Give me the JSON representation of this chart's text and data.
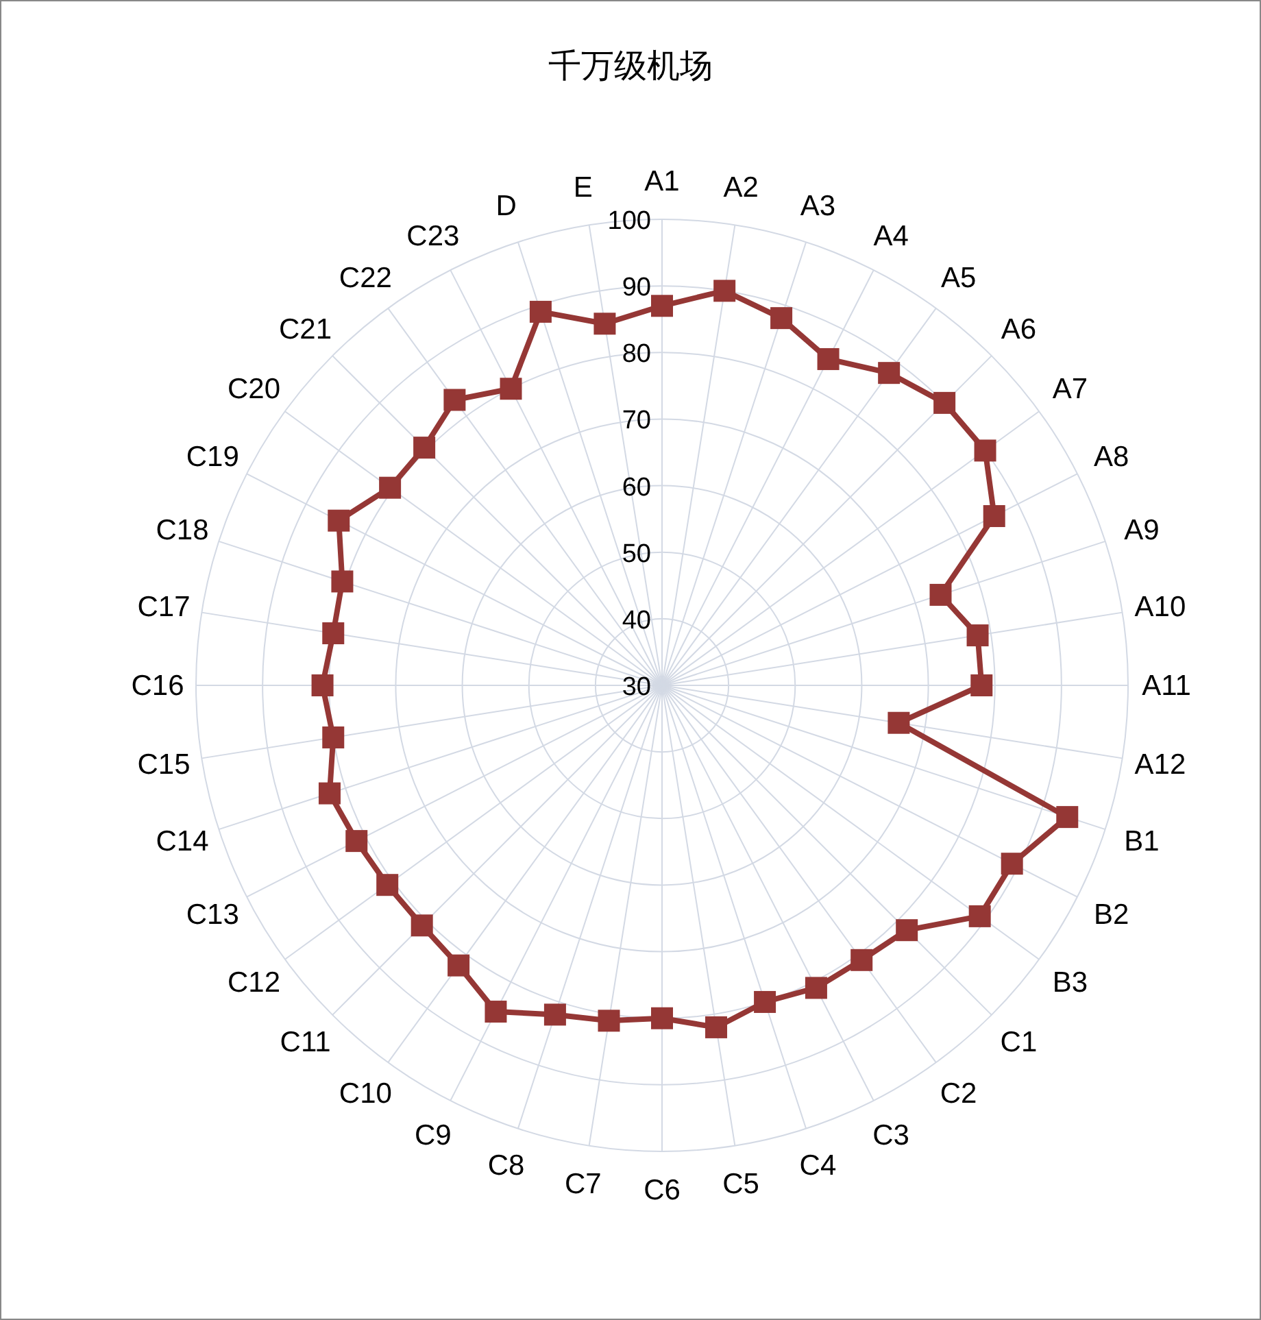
{
  "chart_data": {
    "type": "radar",
    "title": "千万级机场",
    "categories": [
      "A1",
      "A2",
      "A3",
      "A4",
      "A5",
      "A6",
      "A7",
      "A8",
      "A9",
      "A10",
      "A11",
      "A12",
      "B1",
      "B2",
      "B3",
      "C1",
      "C2",
      "C3",
      "C4",
      "C5",
      "C6",
      "C7",
      "C8",
      "C9",
      "C10",
      "C11",
      "C12",
      "C13",
      "C14",
      "C15",
      "C16",
      "C17",
      "C18",
      "C19",
      "C20",
      "C21",
      "C22",
      "C23",
      "D",
      "E"
    ],
    "series": [
      {
        "color": "#953735",
        "values": [
          87,
          90,
          88,
          85,
          88,
          90,
          90,
          86,
          74,
          78,
          78,
          66,
          94,
          89,
          89,
          82,
          81,
          81,
          80,
          82,
          80,
          81,
          82,
          85,
          82,
          81,
          81,
          81.5,
          82.5,
          80,
          81,
          80,
          80.5,
          84.5,
          80.5,
          80.5,
          83,
          80,
          89,
          85
        ]
      }
    ],
    "ylim": [
      30,
      100
    ],
    "yticks": [
      30,
      40,
      50,
      60,
      70,
      80,
      90,
      100
    ],
    "grid": true,
    "marker": "square",
    "line_style": "solid"
  }
}
